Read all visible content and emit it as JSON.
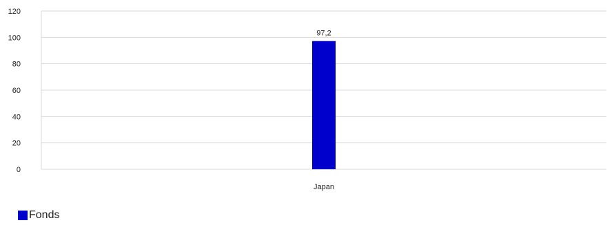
{
  "chart_data": {
    "type": "bar",
    "categories": [
      "Japan"
    ],
    "series": [
      {
        "name": "Fonds",
        "values": [
          97.2
        ],
        "color": "#0000cc"
      }
    ],
    "data_labels": [
      "97,2"
    ],
    "y_ticks": [
      "0",
      "20",
      "40",
      "60",
      "80",
      "100",
      "120"
    ],
    "ylim": [
      0,
      120
    ],
    "grid": true,
    "legend_position": "bottom-left",
    "colors": {
      "grid": "#d9d9d9",
      "axis": "#d9d9d9"
    }
  }
}
